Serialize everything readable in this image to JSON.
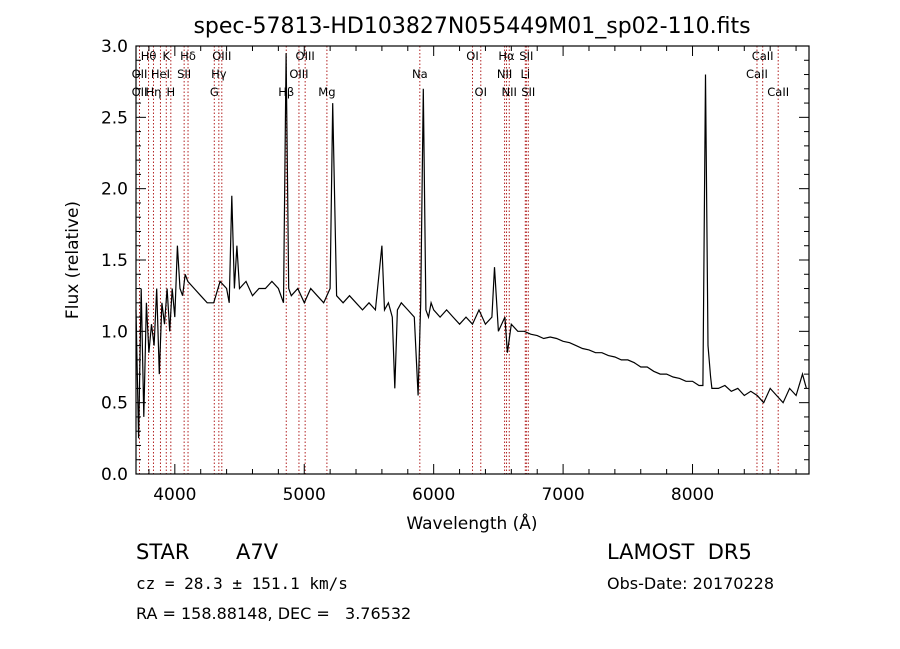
{
  "chart_data": {
    "type": "line",
    "title": "spec-57813-HD103827N055449M01_sp02-110.fits",
    "xlabel": "Wavelength (Å)",
    "ylabel": "Flux (relative)",
    "xlim": [
      3700,
      8900
    ],
    "ylim": [
      0.0,
      3.0
    ],
    "xticks": [
      4000,
      5000,
      6000,
      7000,
      8000
    ],
    "xtick_labels": [
      "4000",
      "5000",
      "6000",
      "7000",
      "8000"
    ],
    "yticks": [
      0.0,
      0.5,
      1.0,
      1.5,
      2.0,
      2.5,
      3.0
    ],
    "ytick_labels": [
      "0.0",
      "0.5",
      "1.0",
      "1.5",
      "2.0",
      "2.5",
      "3.0"
    ],
    "grid": false,
    "line_color": "#000000",
    "marker_color": "#b22222",
    "series": [
      {
        "x": [
          3700,
          3720,
          3740,
          3760,
          3780,
          3800,
          3820,
          3840,
          3860,
          3880,
          3900,
          3920,
          3940,
          3960,
          3980,
          4000,
          4020,
          4040,
          4060,
          4080,
          4100,
          4150,
          4200,
          4250,
          4300,
          4350,
          4400,
          4420,
          4440,
          4460,
          4480,
          4500,
          4550,
          4600,
          4650,
          4700,
          4750,
          4800,
          4840,
          4860,
          4880,
          4900,
          4950,
          5000,
          5050,
          5100,
          5150,
          5200,
          5220,
          5250,
          5300,
          5350,
          5400,
          5450,
          5500,
          5550,
          5600,
          5620,
          5650,
          5680,
          5700,
          5720,
          5750,
          5800,
          5850,
          5880,
          5900,
          5920,
          5940,
          5960,
          5980,
          6000,
          6050,
          6100,
          6150,
          6200,
          6250,
          6300,
          6350,
          6400,
          6450,
          6470,
          6500,
          6550,
          6570,
          6600,
          6650,
          6700,
          6750,
          6800,
          6850,
          6900,
          6950,
          7000,
          7050,
          7100,
          7150,
          7200,
          7250,
          7300,
          7350,
          7400,
          7450,
          7500,
          7550,
          7600,
          7650,
          7700,
          7750,
          7800,
          7850,
          7900,
          7950,
          8000,
          8050,
          8080,
          8100,
          8120,
          8140,
          8150,
          8200,
          8250,
          8300,
          8350,
          8400,
          8450,
          8500,
          8550,
          8600,
          8650,
          8700,
          8750,
          8800,
          8850,
          8880
        ],
        "y": [
          1.15,
          0.25,
          1.3,
          0.4,
          1.2,
          0.85,
          1.05,
          0.9,
          1.3,
          0.7,
          1.2,
          1.05,
          1.3,
          1.0,
          1.3,
          1.1,
          1.6,
          1.3,
          1.25,
          1.4,
          1.35,
          1.3,
          1.25,
          1.2,
          1.2,
          1.35,
          1.3,
          1.2,
          1.95,
          1.3,
          1.6,
          1.3,
          1.35,
          1.25,
          1.3,
          1.3,
          1.35,
          1.3,
          1.2,
          2.95,
          1.3,
          1.25,
          1.3,
          1.2,
          1.3,
          1.25,
          1.2,
          1.3,
          2.6,
          1.25,
          1.2,
          1.25,
          1.2,
          1.15,
          1.2,
          1.15,
          1.6,
          1.15,
          1.2,
          1.1,
          0.6,
          1.15,
          1.2,
          1.15,
          1.1,
          0.55,
          1.2,
          2.7,
          1.15,
          1.1,
          1.2,
          1.15,
          1.1,
          1.15,
          1.1,
          1.05,
          1.1,
          1.05,
          1.15,
          1.05,
          1.1,
          1.45,
          1.0,
          1.1,
          0.85,
          1.05,
          1.0,
          1.0,
          0.98,
          0.97,
          0.95,
          0.96,
          0.95,
          0.93,
          0.92,
          0.9,
          0.88,
          0.87,
          0.85,
          0.85,
          0.83,
          0.82,
          0.8,
          0.8,
          0.78,
          0.75,
          0.75,
          0.72,
          0.7,
          0.7,
          0.68,
          0.67,
          0.65,
          0.65,
          0.62,
          0.62,
          2.8,
          0.9,
          0.68,
          0.6,
          0.6,
          0.62,
          0.58,
          0.6,
          0.55,
          0.58,
          0.55,
          0.5,
          0.6,
          0.55,
          0.5,
          0.6,
          0.55,
          0.7,
          0.6
        ]
      }
    ],
    "lines": [
      {
        "label": "Hθ",
        "x": 3797,
        "row": 0
      },
      {
        "label": "OII",
        "x": 3727,
        "row": 1
      },
      {
        "label": "OII",
        "x": 3727,
        "row": 2
      },
      {
        "label": "K",
        "x": 3934,
        "row": 0
      },
      {
        "label": "HeI",
        "x": 3889,
        "row": 1
      },
      {
        "label": "Hη",
        "x": 3835,
        "row": 2
      },
      {
        "label": "H",
        "x": 3969,
        "row": 2
      },
      {
        "label": "Hδ",
        "x": 4102,
        "row": 0
      },
      {
        "label": "SII",
        "x": 4072,
        "row": 1
      },
      {
        "label": "OIII",
        "x": 4363,
        "row": 0
      },
      {
        "label": "Hγ",
        "x": 4340,
        "row": 1
      },
      {
        "label": "G",
        "x": 4305,
        "row": 2
      },
      {
        "label": "OIII",
        "x": 5007,
        "row": 0
      },
      {
        "label": "OIII",
        "x": 4959,
        "row": 1
      },
      {
        "label": "Hβ",
        "x": 4861,
        "row": 2
      },
      {
        "label": "Mg",
        "x": 5175,
        "row": 2
      },
      {
        "label": "Na",
        "x": 5893,
        "row": 1
      },
      {
        "label": "OI",
        "x": 6300,
        "row": 0
      },
      {
        "label": "OI",
        "x": 6364,
        "row": 2
      },
      {
        "label": "Hα",
        "x": 6563,
        "row": 0
      },
      {
        "label": "SII",
        "x": 6716,
        "row": 0
      },
      {
        "label": "NII",
        "x": 6548,
        "row": 1
      },
      {
        "label": "Li",
        "x": 6708,
        "row": 1
      },
      {
        "label": "NII",
        "x": 6584,
        "row": 2
      },
      {
        "label": "SII",
        "x": 6731,
        "row": 2
      },
      {
        "label": "CaII",
        "x": 8542,
        "row": 0
      },
      {
        "label": "CaII",
        "x": 8498,
        "row": 1
      },
      {
        "label": "CaII",
        "x": 8662,
        "row": 2
      }
    ]
  },
  "info": {
    "class_label": "STAR",
    "subclass": "A7V",
    "survey": "LAMOST  DR5",
    "cz": "cz = 28.3 ± 151.1 km/s",
    "obs_date": "Obs-Date: 20170228",
    "radec": "RA = 158.88148, DEC =   3.76532"
  }
}
